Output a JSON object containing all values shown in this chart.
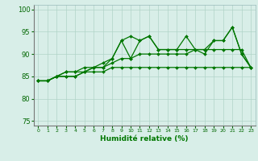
{
  "xlabel": "Humidité relative (%)",
  "xlim": [
    -0.5,
    23.5
  ],
  "ylim": [
    74,
    101
  ],
  "yticks": [
    75,
    80,
    85,
    90,
    95,
    100
  ],
  "xtick_labels": [
    "0",
    "1",
    "2",
    "3",
    "4",
    "5",
    "6",
    "7",
    "8",
    "9",
    "10",
    "11",
    "12",
    "13",
    "14",
    "15",
    "16",
    "17",
    "18",
    "19",
    "20",
    "21",
    "22",
    "23"
  ],
  "bg_color": "#d8eee8",
  "grid_color": "#b0d4c8",
  "line_color": "#007700",
  "series": [
    [
      84,
      84,
      85,
      85,
      85,
      86,
      86,
      86,
      87,
      87,
      87,
      87,
      87,
      87,
      87,
      87,
      87,
      87,
      87,
      87,
      87,
      87,
      87,
      87
    ],
    [
      84,
      84,
      85,
      86,
      86,
      86,
      87,
      87,
      88,
      89,
      89,
      90,
      90,
      90,
      90,
      90,
      90,
      91,
      91,
      91,
      91,
      91,
      91,
      87
    ],
    [
      84,
      84,
      85,
      86,
      86,
      87,
      87,
      88,
      89,
      93,
      94,
      93,
      94,
      91,
      91,
      91,
      94,
      91,
      90,
      93,
      93,
      96,
      90,
      87
    ],
    [
      84,
      84,
      85,
      85,
      85,
      86,
      87,
      87,
      89,
      93,
      89,
      93,
      94,
      91,
      91,
      91,
      91,
      91,
      91,
      93,
      93,
      96,
      90,
      87
    ]
  ]
}
